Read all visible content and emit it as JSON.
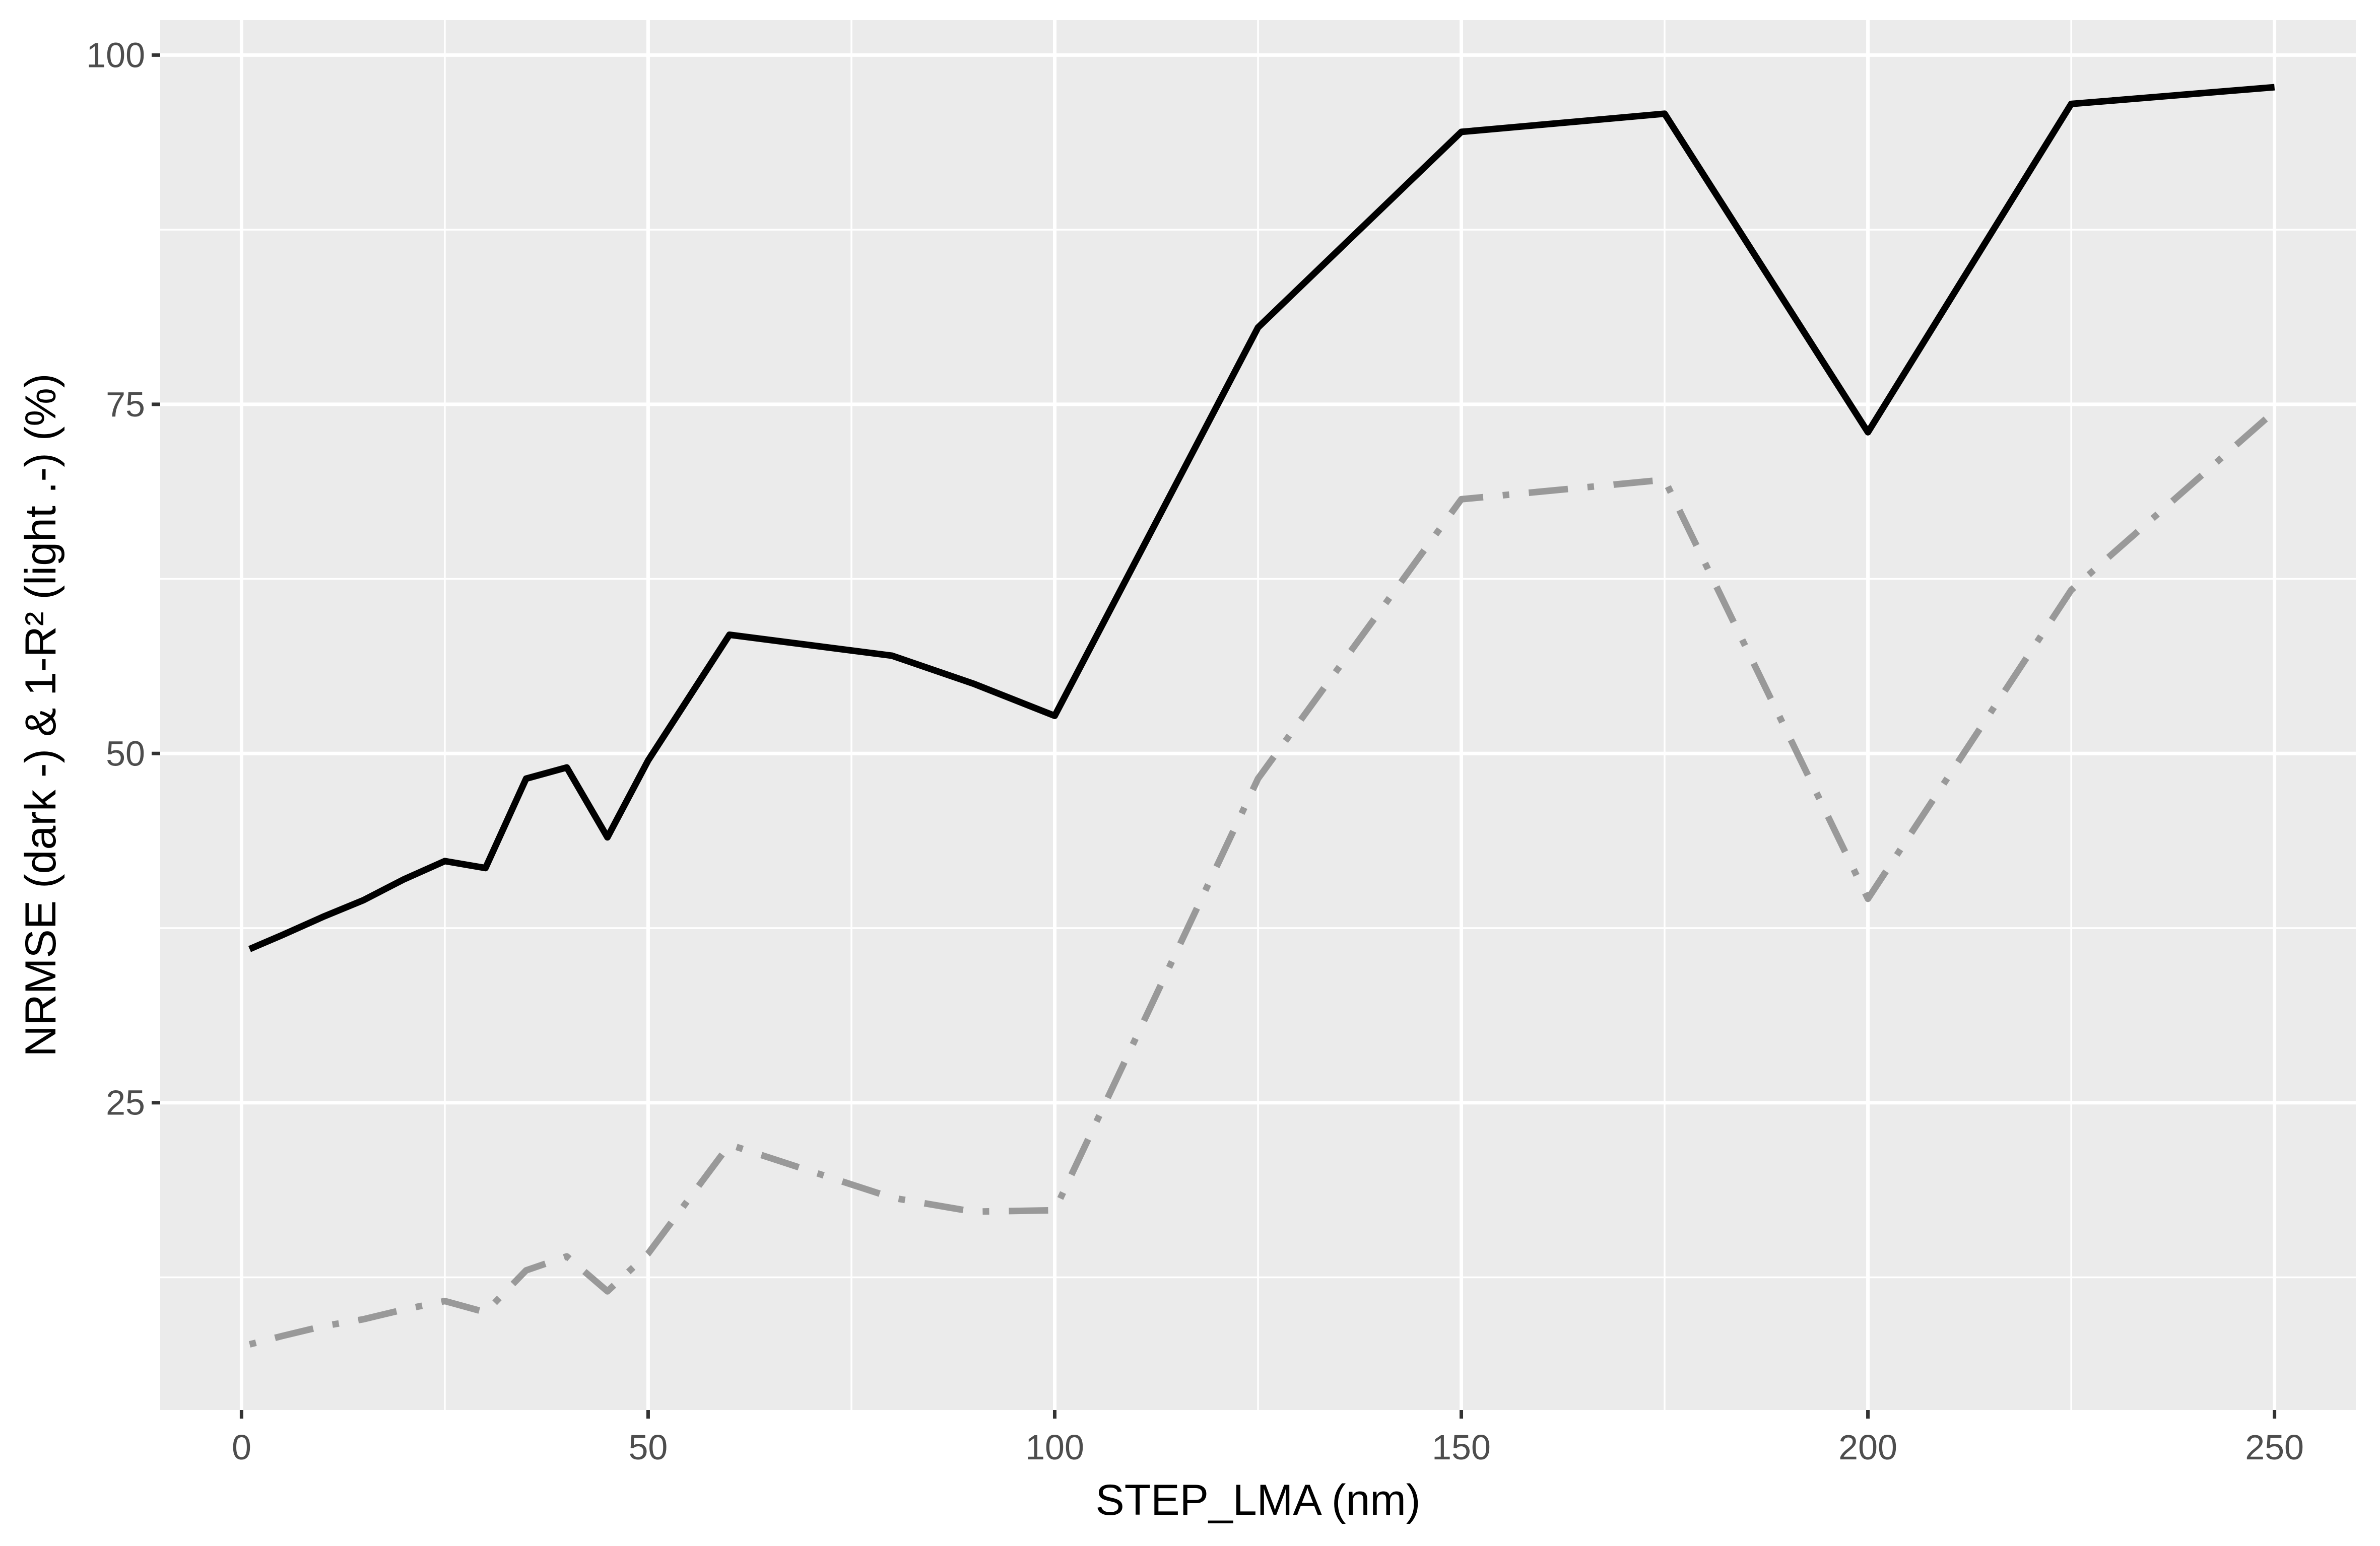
{
  "chart_data": {
    "type": "line",
    "xlabel": "STEP_LMA (nm)",
    "ylabel": "NRMSE (dark -) & 1-R² (light .-) (%)",
    "xlim": [
      -10,
      260
    ],
    "ylim": [
      3,
      102.5
    ],
    "x_ticks": [
      0,
      50,
      100,
      150,
      200,
      250
    ],
    "y_ticks": [
      25,
      50,
      75,
      100
    ],
    "grid": true,
    "legend": "none",
    "colors": {
      "panel": "#ebebeb",
      "grid": "#ffffff",
      "tick_text": "#4d4d4d",
      "series_dark": "#000000",
      "series_light": "#999999"
    },
    "series": [
      {
        "style": "solid",
        "color": "#000000",
        "x": [
          1,
          5,
          10,
          15,
          20,
          25,
          30,
          35,
          40,
          45,
          50,
          60,
          80,
          90,
          100,
          125,
          150,
          175,
          200,
          225,
          250
        ],
        "y": [
          36.0,
          37.0,
          38.3,
          39.5,
          41.0,
          42.3,
          41.8,
          48.2,
          49.0,
          44.0,
          49.5,
          58.5,
          57.0,
          55.0,
          52.7,
          80.5,
          94.5,
          95.8,
          73.0,
          96.5,
          97.7
        ]
      },
      {
        "style": "dotdash",
        "color": "#999999",
        "x": [
          1,
          5,
          10,
          15,
          20,
          25,
          30,
          35,
          40,
          45,
          50,
          60,
          80,
          90,
          100,
          125,
          150,
          175,
          200,
          225,
          250
        ],
        "y": [
          7.7,
          8.3,
          9.0,
          9.5,
          10.2,
          10.8,
          10.0,
          13.0,
          14.0,
          11.5,
          14.2,
          22.0,
          18.2,
          17.2,
          17.3,
          48.2,
          68.2,
          69.6,
          39.6,
          61.7,
          74.5
        ]
      }
    ]
  }
}
